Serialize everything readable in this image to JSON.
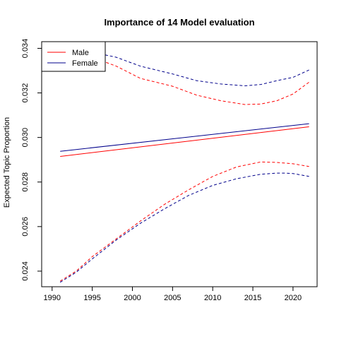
{
  "chart_data": {
    "type": "line",
    "title": "Importance of 14 Model evaluation",
    "xlabel": "",
    "ylabel": "Expected Topic Proportion",
    "xlim": [
      1991,
      2022
    ],
    "ylim": [
      0.0233,
      0.0343
    ],
    "x_ticks": [
      1990,
      1995,
      2000,
      2005,
      2010,
      2015,
      2020
    ],
    "y_ticks": [
      0.024,
      0.026,
      0.028,
      0.03,
      0.032,
      0.034
    ],
    "x_tick_labels": [
      "1990",
      "1995",
      "2000",
      "2005",
      "2010",
      "2015",
      "2020"
    ],
    "y_tick_labels": [
      "0.024",
      "0.026",
      "0.028",
      "0.030",
      "0.032",
      "0.034"
    ],
    "legend_position": "top-left",
    "grid": false,
    "series": [
      {
        "name": "Male",
        "color": "#ff0000",
        "style": "solid",
        "x": [
          1991,
          2022
        ],
        "values": [
          0.02915,
          0.03048
        ]
      },
      {
        "name": "Female",
        "color": "#00008b",
        "style": "solid",
        "x": [
          1991,
          2022
        ],
        "values": [
          0.02938,
          0.03062
        ]
      },
      {
        "style": "dashed",
        "color": "#ff0000",
        "x": [
          1995,
          1998,
          2001,
          2005,
          2008,
          2011,
          2014,
          2016,
          2018,
          2020,
          2022
        ],
        "values": [
          0.0336,
          0.0332,
          0.03265,
          0.0323,
          0.0319,
          0.03165,
          0.03148,
          0.0315,
          0.03165,
          0.03195,
          0.03248
        ]
      },
      {
        "style": "dashed",
        "color": "#00008b",
        "x": [
          1996,
          1998,
          2001,
          2005,
          2008,
          2011,
          2014,
          2016,
          2018,
          2020,
          2022
        ],
        "values": [
          0.03375,
          0.0336,
          0.0332,
          0.03285,
          0.03255,
          0.0324,
          0.03232,
          0.03238,
          0.03255,
          0.0327,
          0.03303
        ]
      },
      {
        "style": "dashed",
        "color": "#ff0000",
        "x": [
          1991,
          1993,
          1995,
          1998,
          2001,
          2004,
          2007,
          2010,
          2013,
          2016,
          2018,
          2020,
          2022
        ],
        "values": [
          0.02355,
          0.024,
          0.02465,
          0.02545,
          0.02625,
          0.027,
          0.02765,
          0.02825,
          0.02868,
          0.0289,
          0.02888,
          0.02882,
          0.0287
        ]
      },
      {
        "style": "dashed",
        "color": "#00008b",
        "x": [
          1991,
          1993,
          1995,
          1998,
          2001,
          2004,
          2007,
          2010,
          2013,
          2016,
          2018,
          2019,
          2020,
          2022
        ],
        "values": [
          0.0235,
          0.02395,
          0.02455,
          0.0254,
          0.02615,
          0.0268,
          0.0274,
          0.02785,
          0.02815,
          0.02835,
          0.0284,
          0.0284,
          0.02838,
          0.02825
        ]
      }
    ]
  }
}
